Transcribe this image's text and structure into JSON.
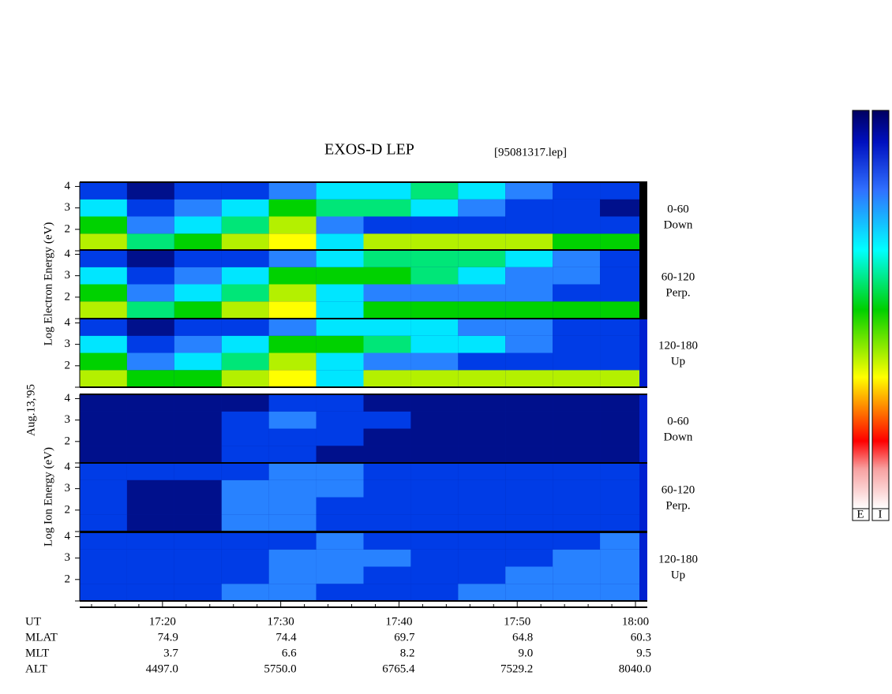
{
  "chart_data": {
    "type": "spectrogram",
    "title": "EXOS-D LEP",
    "file": "[95081317.lep]",
    "date_label": "Aug.13,'95",
    "groups": [
      {
        "ylabel": "Log Electron Energy (eV)"
      },
      {
        "ylabel": "Log Ion Energy (eV)"
      }
    ],
    "xlim": [
      1033,
      1081
    ],
    "xticks": [
      {
        "value": 1040,
        "label": "17:20"
      },
      {
        "value": 1050,
        "label": "17:30"
      },
      {
        "value": 1060,
        "label": "17:40"
      },
      {
        "value": 1070,
        "label": "17:50"
      },
      {
        "value": 1080,
        "label": "18:00"
      }
    ],
    "xminor": [
      1034,
      1036,
      1038,
      1042,
      1044,
      1046,
      1048,
      1052,
      1054,
      1056,
      1058,
      1062,
      1064,
      1066,
      1068,
      1072,
      1074,
      1076,
      1078
    ],
    "ylim": [
      1,
      4.2
    ],
    "yticks": [
      2,
      3,
      4
    ],
    "xbins": [
      1033,
      1037,
      1041,
      1045,
      1049,
      1053,
      1057,
      1061,
      1065,
      1069,
      1073,
      1077,
      1081
    ],
    "ybins": [
      1,
      1.8,
      2.6,
      3.4,
      4.2
    ],
    "panels": [
      {
        "group": 0,
        "angle": "0-60",
        "direction": "Down",
        "z": [
          [
            6,
            4,
            5,
            6,
            7,
            3,
            6,
            6,
            6,
            6,
            5,
            5
          ],
          [
            5,
            2,
            3,
            4,
            6,
            2,
            1,
            1,
            1,
            1,
            1,
            1
          ],
          [
            3,
            1,
            2,
            3,
            5,
            4,
            4,
            3,
            2,
            1,
            1,
            0
          ],
          [
            1,
            0,
            1,
            1,
            2,
            3,
            3,
            4,
            3,
            2,
            1,
            1
          ]
        ]
      },
      {
        "group": 0,
        "angle": "60-120",
        "direction": "Perp.",
        "z": [
          [
            6,
            4,
            5,
            6,
            7,
            3,
            5,
            5,
            5,
            5,
            5,
            5
          ],
          [
            5,
            2,
            3,
            4,
            6,
            3,
            2,
            2,
            2,
            2,
            1,
            1
          ],
          [
            3,
            1,
            2,
            3,
            5,
            5,
            5,
            4,
            3,
            2,
            2,
            1
          ],
          [
            1,
            0,
            1,
            1,
            2,
            3,
            4,
            4,
            4,
            3,
            2,
            1
          ]
        ]
      },
      {
        "group": 0,
        "angle": "120-180",
        "direction": "Up",
        "z": [
          [
            6,
            5,
            5,
            6,
            7,
            3,
            6,
            6,
            6,
            6,
            6,
            6
          ],
          [
            5,
            2,
            3,
            4,
            6,
            3,
            2,
            2,
            1,
            1,
            1,
            1
          ],
          [
            3,
            1,
            2,
            3,
            5,
            5,
            4,
            3,
            3,
            2,
            1,
            1
          ],
          [
            1,
            0,
            1,
            1,
            2,
            3,
            3,
            3,
            2,
            2,
            1,
            1
          ]
        ]
      },
      {
        "group": 1,
        "angle": "0-60",
        "direction": "Down",
        "z": [
          [
            0,
            0,
            0,
            1,
            1,
            0,
            0,
            0,
            0,
            0,
            0,
            0
          ],
          [
            0,
            0,
            0,
            1,
            1,
            1,
            0,
            0,
            0,
            0,
            0,
            0
          ],
          [
            0,
            0,
            0,
            1,
            2,
            1,
            1,
            0,
            0,
            0,
            0,
            0
          ],
          [
            0,
            0,
            0,
            0,
            1,
            1,
            0,
            0,
            0,
            0,
            0,
            0
          ]
        ]
      },
      {
        "group": 1,
        "angle": "60-120",
        "direction": "Perp.",
        "z": [
          [
            1,
            0,
            0,
            2,
            2,
            1,
            1,
            1,
            1,
            1,
            1,
            1
          ],
          [
            1,
            0,
            0,
            2,
            2,
            1,
            1,
            1,
            1,
            1,
            1,
            1
          ],
          [
            1,
            0,
            0,
            2,
            2,
            2,
            1,
            1,
            1,
            1,
            1,
            1
          ],
          [
            1,
            1,
            1,
            1,
            2,
            2,
            1,
            1,
            1,
            1,
            1,
            1
          ]
        ]
      },
      {
        "group": 1,
        "angle": "120-180",
        "direction": "Up",
        "z": [
          [
            1,
            1,
            1,
            2,
            2,
            1,
            1,
            1,
            2,
            2,
            2,
            2
          ],
          [
            1,
            1,
            1,
            1,
            2,
            2,
            1,
            1,
            1,
            2,
            2,
            2
          ],
          [
            1,
            1,
            1,
            1,
            2,
            2,
            2,
            1,
            1,
            1,
            2,
            2
          ],
          [
            1,
            1,
            1,
            1,
            1,
            2,
            1,
            1,
            1,
            1,
            1,
            2
          ]
        ]
      }
    ],
    "ut_label": "UT",
    "ephemeris": [
      {
        "name": "MLAT",
        "values": [
          "74.9",
          "74.4",
          "69.7",
          "64.8",
          "60.3"
        ]
      },
      {
        "name": "MLT",
        "values": [
          "3.7",
          "6.6",
          "8.2",
          "9.0",
          "9.5"
        ]
      },
      {
        "name": "ALT",
        "values": [
          "4497.0",
          "5750.0",
          "6765.4",
          "7529.2",
          "8040.0"
        ]
      }
    ],
    "colorbars": [
      {
        "label": "E"
      },
      {
        "label": "I"
      }
    ]
  }
}
